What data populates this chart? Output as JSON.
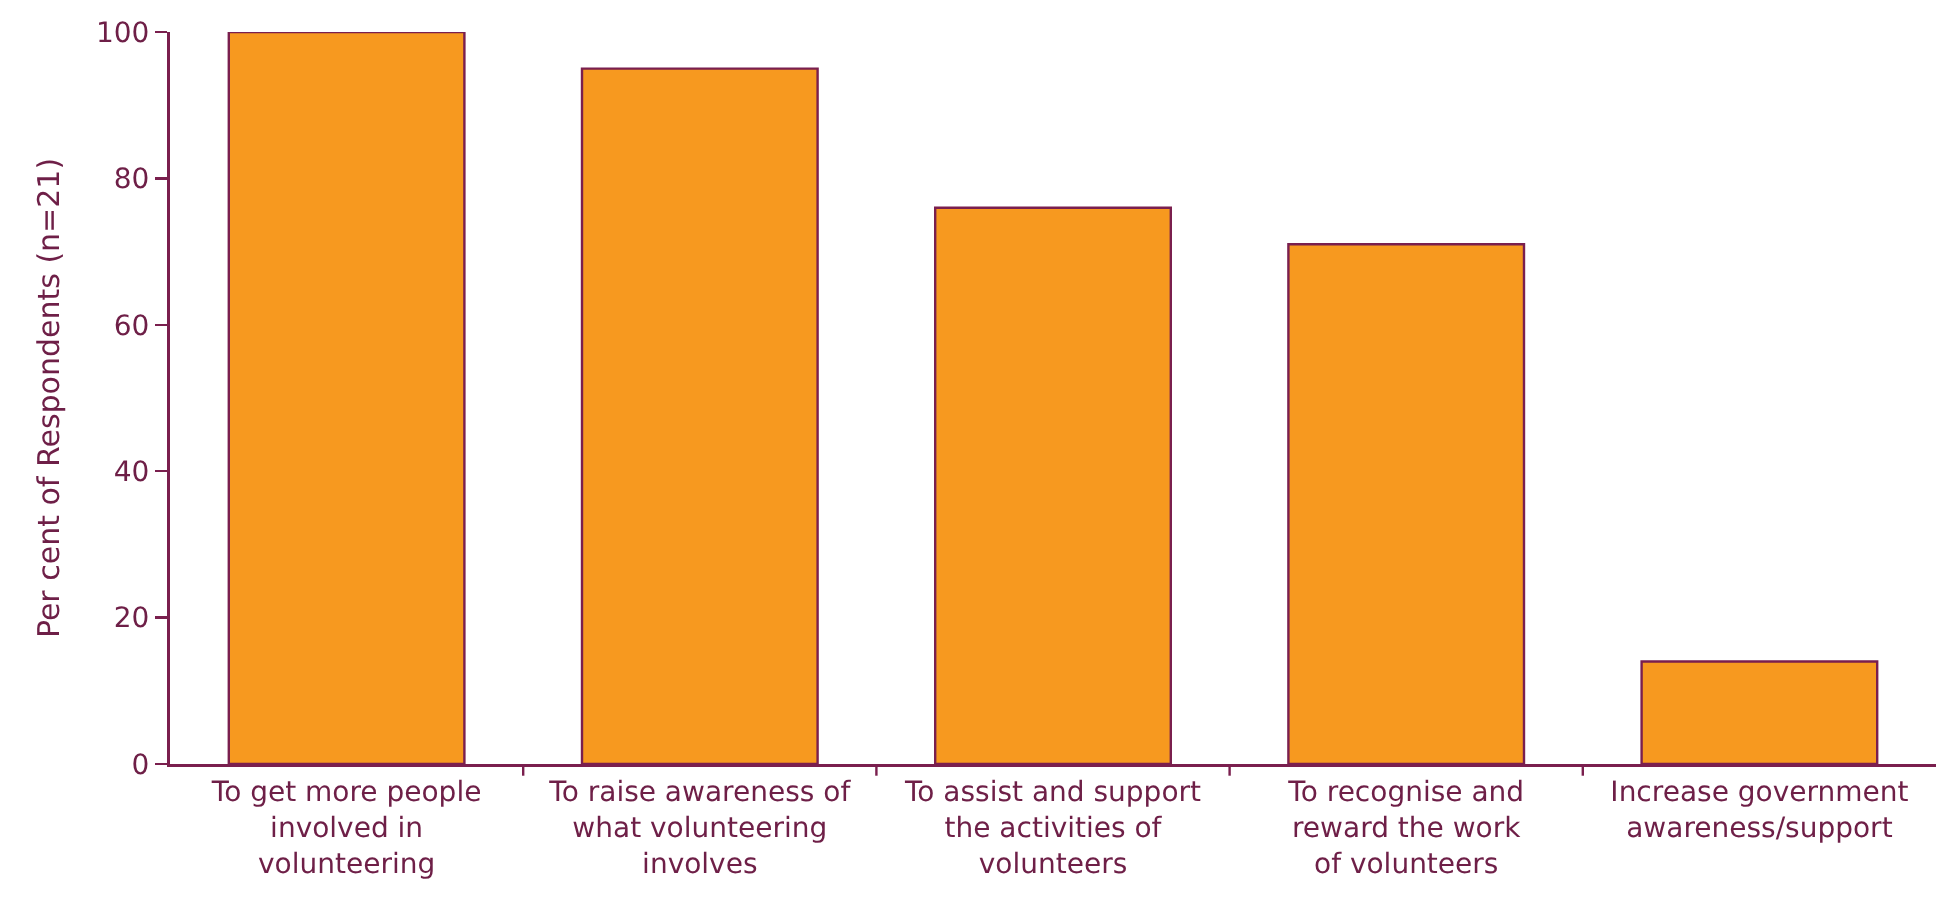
{
  "chart_data": {
    "type": "bar",
    "ylabel": "Per cent of Respondents (n=21)",
    "categories": [
      "To get more people\ninvolved in\nvolunteering",
      "To raise awareness of\nwhat volunteering\ninvolves",
      "To assist and support\nthe activities of\nvolunteers",
      "To recognise and\nreward the work\nof volunteers",
      "Increase government\nawareness/support"
    ],
    "values": [
      100,
      95,
      76,
      71,
      14
    ],
    "color": "#f7991f",
    "ylim": [
      0,
      100
    ],
    "yticks": [
      0,
      20,
      40,
      60,
      80,
      100
    ]
  }
}
